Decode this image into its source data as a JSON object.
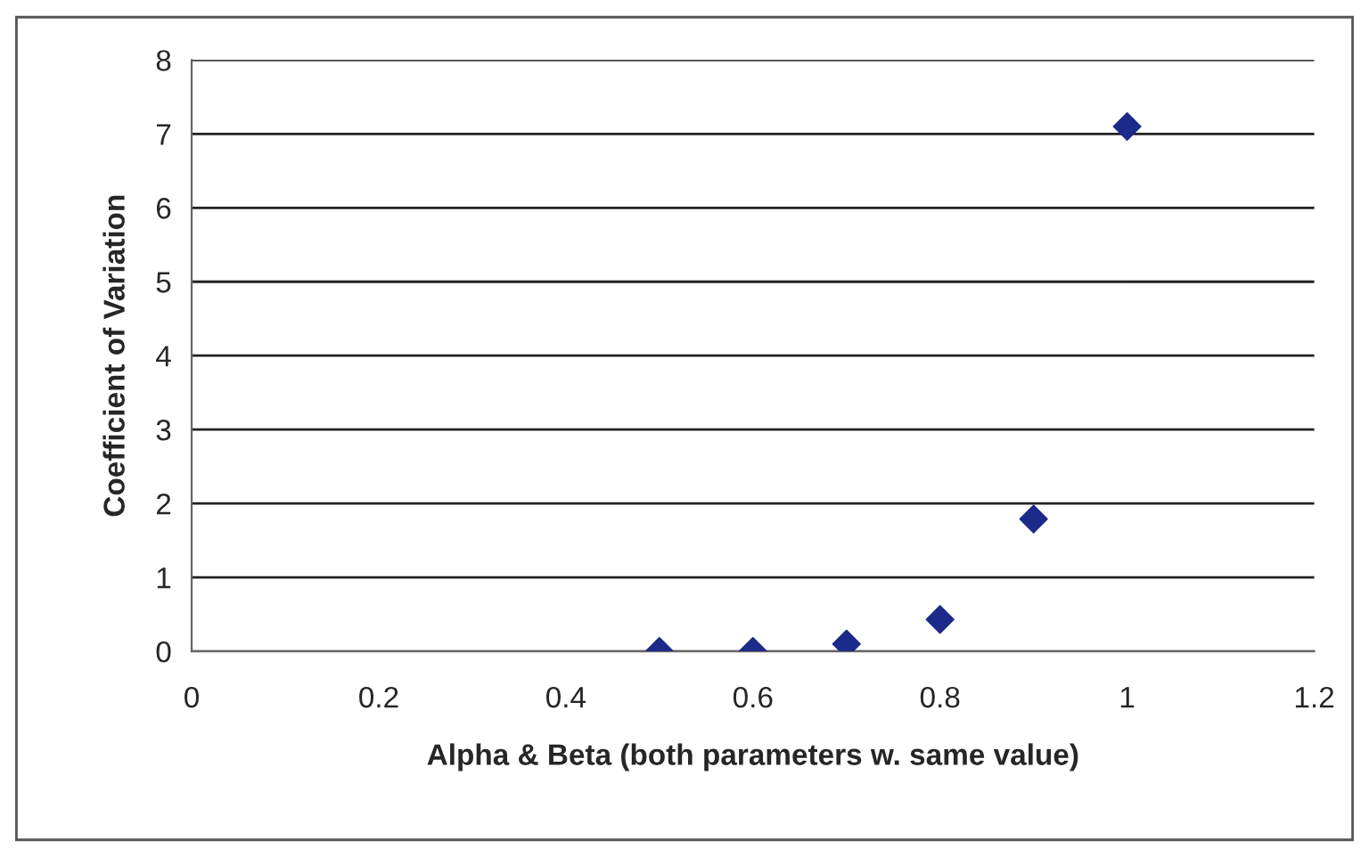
{
  "chart_data": {
    "type": "scatter",
    "xlabel": "Alpha & Beta (both parameters w. same value)",
    "ylabel": "Coefficient of Variation",
    "x": [
      0.5,
      0.6,
      0.7,
      0.8,
      0.9,
      1.0
    ],
    "series": [
      {
        "color": "#1c2a8a",
        "values": [
          0,
          0,
          0.1,
          0.43,
          1.79,
          7.1
        ]
      }
    ],
    "xlim": [
      0,
      1.2
    ],
    "xticks": [
      0,
      0.2,
      0.4,
      0.6,
      0.8,
      1,
      1.2
    ],
    "ylim": [
      0,
      8
    ],
    "yticks": [
      0,
      1,
      2,
      3,
      4,
      5,
      6,
      7,
      8
    ],
    "grid": "y",
    "marker": "diamond",
    "legend": false
  }
}
